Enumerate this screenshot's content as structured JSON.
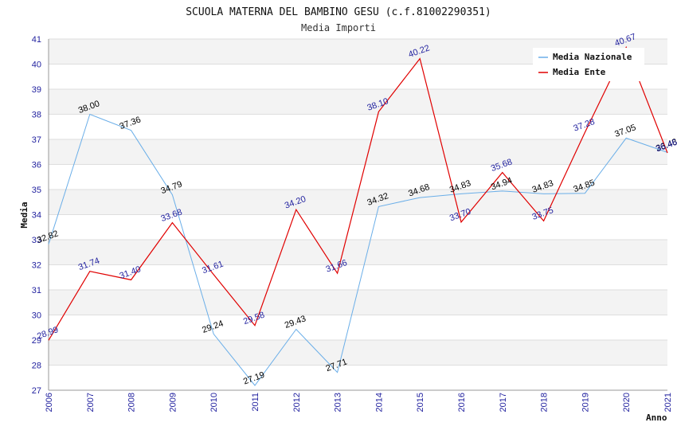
{
  "chart_data": {
    "type": "line",
    "title": "SCUOLA MATERNA DEL BAMBINO GESU (c.f.81002290351)",
    "subtitle": "Media Importi",
    "xlabel": "Anno",
    "ylabel": "Media",
    "ylim": [
      27,
      41
    ],
    "y_ticks": [
      "27",
      "28",
      "29",
      "30",
      "31",
      "32",
      "33",
      "34",
      "35",
      "36",
      "37",
      "38",
      "39",
      "40",
      "41"
    ],
    "categories": [
      "2006",
      "2007",
      "2008",
      "2009",
      "2010",
      "2011",
      "2012",
      "2013",
      "2014",
      "2015",
      "2016",
      "2017",
      "2018",
      "2019",
      "2020",
      "2021"
    ],
    "grid": true,
    "legend_position": "top-right",
    "series": [
      {
        "name": "Media Nazionale",
        "color": "#6aaee8",
        "label_color": "#000000",
        "values": [
          32.82,
          38.0,
          37.36,
          34.79,
          29.24,
          27.19,
          29.43,
          27.71,
          34.32,
          34.68,
          34.83,
          34.94,
          34.83,
          34.85,
          37.05,
          36.48
        ],
        "labels": [
          "32.82",
          "38.00",
          "37.36",
          "34.79",
          "29.24",
          "27.19",
          "29.43",
          "27.71",
          "34.32",
          "34.68",
          "34.83",
          "34.94",
          "34.83",
          "34.85",
          "37.05",
          "36.48"
        ]
      },
      {
        "name": "Media Ente",
        "color": "#e00000",
        "label_color": "#1f1f9e",
        "values": [
          28.99,
          31.74,
          31.4,
          33.68,
          31.61,
          29.58,
          34.2,
          31.66,
          38.1,
          40.22,
          33.7,
          35.68,
          33.75,
          37.28,
          40.67,
          36.46
        ],
        "labels": [
          "28.99",
          "31.74",
          "31.40",
          "33.68",
          "31.61",
          "29.58",
          "34.20",
          "31.66",
          "38.10",
          "40.22",
          "33.70",
          "35.68",
          "33.75",
          "37.28",
          "40.67",
          "36.46"
        ]
      }
    ]
  }
}
